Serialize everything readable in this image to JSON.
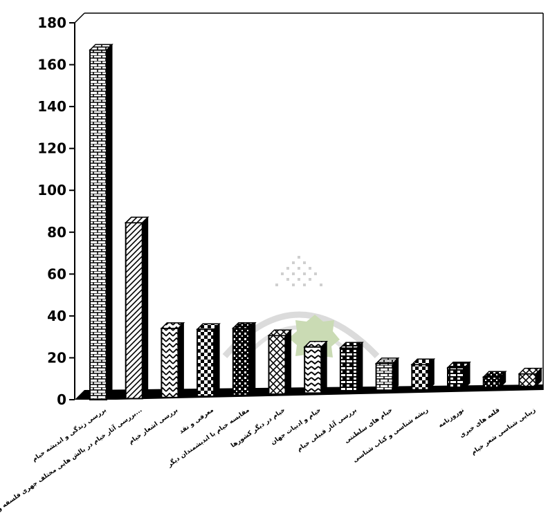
{
  "chart_data": {
    "type": "bar",
    "title": "",
    "xlabel": "",
    "ylabel": "",
    "ylim": [
      0,
      180
    ],
    "yticks": [
      0,
      20,
      40,
      60,
      80,
      100,
      120,
      140,
      160,
      180
    ],
    "grid": false,
    "legend": "none",
    "categories": [
      "بررسی زندگی و اندیشه خیام",
      "بررسی آثار خیام در بالش هایی مختلف جهری فلسفه و...",
      "بررسی اشعار خیام",
      "معرفی و نقد",
      "مقایسه خیام با اندیشمندان دیگر",
      "خیام در دیگر کشورها",
      "خیام و ادبیات جهان",
      "بررسی آثار قبیلی خیام",
      "خیام های سلطنتی",
      "ریشه شناسی و کتاب شناسی",
      "نوروزنامه",
      "قلعه های خیری",
      "زیبایی شناسی شعر خیام"
    ],
    "values": [
      167,
      84,
      33,
      32,
      32,
      28,
      22,
      21,
      13,
      12,
      10,
      5,
      6
    ],
    "bar_color": "#000000",
    "background": "#ffffff"
  }
}
